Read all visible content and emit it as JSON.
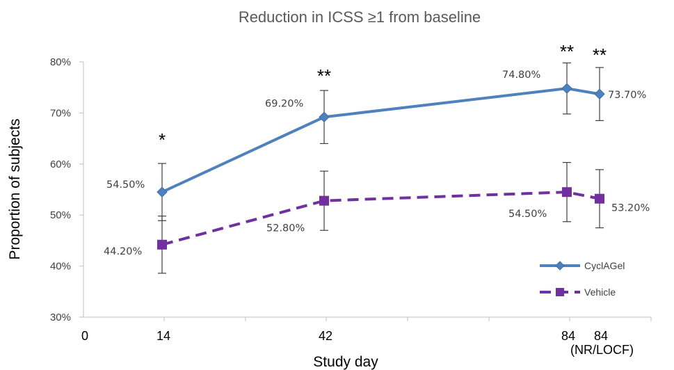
{
  "chart_data": {
    "type": "line",
    "title": "Reduction in ICSS ≥1 from baseline",
    "xlabel": "Study day",
    "ylabel": "Proportion of subjects",
    "ylim": [
      30,
      80
    ],
    "yticks": [
      "30%",
      "40%",
      "50%",
      "60%",
      "70%",
      "80%"
    ],
    "xtick_origin": "0",
    "categories": [
      {
        "label": "14",
        "sublabel": ""
      },
      {
        "label": "42",
        "sublabel": ""
      },
      {
        "label": "84",
        "sublabel": ""
      },
      {
        "label": "84",
        "sublabel": "(NR/LOCF)"
      }
    ],
    "series": [
      {
        "name": "CyclAGel",
        "color": "#4f81bd",
        "marker": "diamond",
        "dash": "solid",
        "values": [
          54.5,
          69.2,
          74.8,
          73.7
        ],
        "labels": [
          "54.50%",
          "69.20%",
          "74.80%",
          "73.70%"
        ],
        "error": [
          5.6,
          5.2,
          5.0,
          5.2
        ]
      },
      {
        "name": "Vehicle",
        "color": "#7030a0",
        "marker": "square",
        "dash": "dashed",
        "values": [
          44.2,
          52.8,
          54.5,
          53.2
        ],
        "labels": [
          "44.20%",
          "52.80%",
          "54.50%",
          "53.20%"
        ],
        "error": [
          5.6,
          5.8,
          5.8,
          5.7
        ]
      }
    ],
    "significance": [
      "*",
      "**",
      "**",
      "**"
    ],
    "grid": false,
    "legend_position": "bottom-right"
  }
}
